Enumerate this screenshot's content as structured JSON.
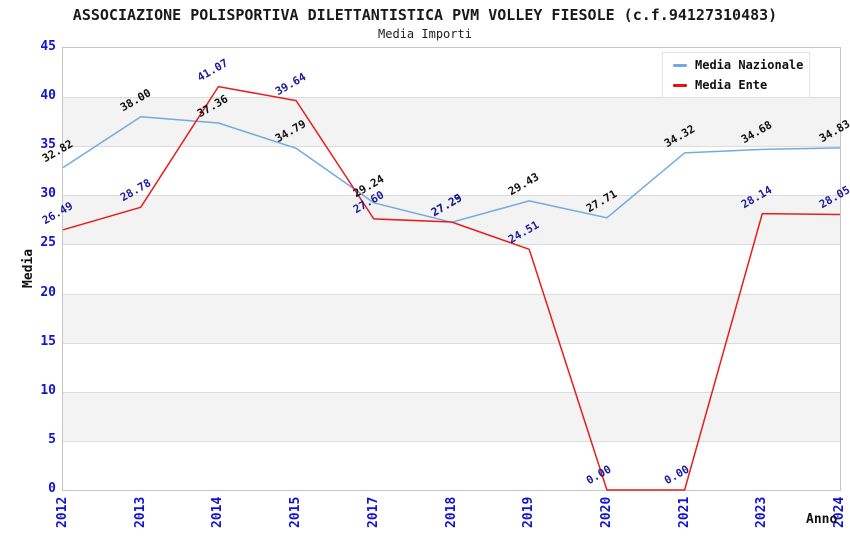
{
  "header": {
    "title": "ASSOCIAZIONE POLISPORTIVA DILETTANTISTICA PVM VOLLEY FIESOLE (c.f.94127310483)",
    "subtitle": "Media Importi"
  },
  "axes": {
    "y_label": "Media",
    "x_label": "Anno",
    "y_ticks": [
      0,
      5,
      10,
      15,
      20,
      25,
      30,
      35,
      40,
      45
    ]
  },
  "legend": {
    "items": [
      {
        "label": "Media Nazionale",
        "color": "#74aadf"
      },
      {
        "label": "Media Ente",
        "color": "#ee1111"
      }
    ]
  },
  "colors": {
    "tick_text": "#1414cc",
    "band_gray": "#f3f3f3",
    "grid_line": "#dcdcdc",
    "plot_border": "#c6c6c6"
  },
  "chart_data": {
    "type": "line",
    "title": "ASSOCIAZIONE POLISPORTIVA DILETTANTISTICA PVM VOLLEY FIESOLE (c.f.94127310483)",
    "subtitle": "Media Importi",
    "xlabel": "Anno",
    "ylabel": "Media",
    "categories": [
      "2012",
      "2013",
      "2014",
      "2015",
      "2017",
      "2018",
      "2019",
      "2020",
      "2021",
      "2023",
      "2024"
    ],
    "series": [
      {
        "name": "Media Nazionale",
        "color": "#74aadf",
        "label_color": "#111111",
        "values": [
          32.82,
          38.0,
          37.36,
          34.79,
          29.24,
          27.25,
          29.43,
          27.71,
          34.32,
          34.68,
          34.83
        ]
      },
      {
        "name": "Media Ente",
        "color": "#e61e1e",
        "label_color": "#1e1e9c",
        "values": [
          26.49,
          28.78,
          41.07,
          39.64,
          27.6,
          27.29,
          24.51,
          0.0,
          0.0,
          28.14,
          28.05
        ]
      }
    ],
    "ylim": [
      0,
      45
    ],
    "y_tick_step": 5,
    "grid": "horizontal gridlines with alternating gray bands",
    "legend_position": "top-right inset",
    "x_tick_rotation": -90,
    "data_label_rotation": -30
  }
}
